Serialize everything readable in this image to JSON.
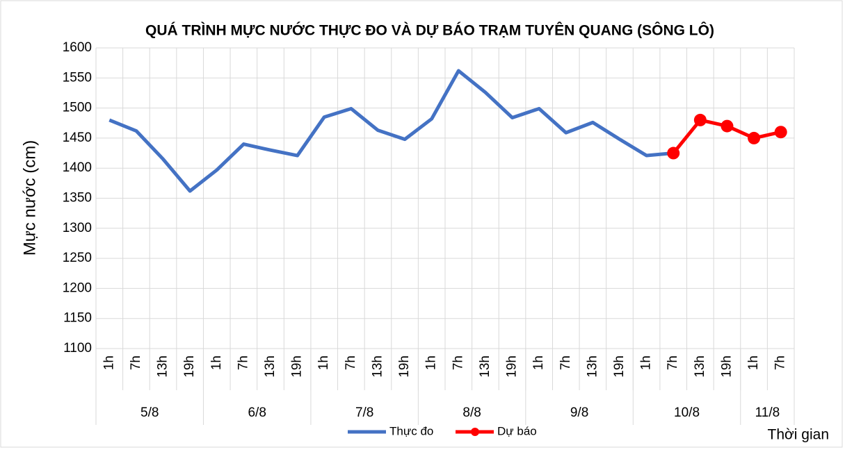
{
  "chart_data": {
    "type": "line",
    "title": "QUÁ TRÌNH MỰC NƯỚC THỰC ĐO VÀ DỰ BÁO TRẠM TUYÊN QUANG (SÔNG LÔ)",
    "y_label": "Mực nước (cm)",
    "x_label": "Thời gian",
    "category_groups": [
      {
        "name": "5/8",
        "categories": [
          "1h",
          "7h",
          "13h",
          "19h"
        ]
      },
      {
        "name": "6/8",
        "categories": [
          "1h",
          "7h",
          "13h",
          "19h"
        ]
      },
      {
        "name": "7/8",
        "categories": [
          "1h",
          "7h",
          "13h",
          "19h"
        ]
      },
      {
        "name": "8/8",
        "categories": [
          "1h",
          "7h",
          "13h",
          "19h"
        ]
      },
      {
        "name": "9/8",
        "categories": [
          "1h",
          "7h",
          "13h",
          "19h"
        ]
      },
      {
        "name": "10/8",
        "categories": [
          "1h",
          "7h",
          "13h",
          "19h"
        ]
      },
      {
        "name": "11/8",
        "categories": [
          "1h",
          "7h"
        ]
      }
    ],
    "series": [
      {
        "name": "Thực đo",
        "color": "#4472c4",
        "markers": false,
        "values": [
          1480,
          1462,
          1415,
          1362,
          1397,
          1440,
          1430,
          1421,
          1485,
          1499,
          1463,
          1448,
          1482,
          1562,
          1526,
          1484,
          1499,
          1459,
          1476,
          1448,
          1421,
          1425,
          null,
          null,
          null,
          null
        ]
      },
      {
        "name": "Dự báo",
        "color": "#ff0000",
        "markers": true,
        "values": [
          null,
          null,
          null,
          null,
          null,
          null,
          null,
          null,
          null,
          null,
          null,
          null,
          null,
          null,
          null,
          null,
          null,
          null,
          null,
          null,
          null,
          1425,
          1480,
          1470,
          1450,
          1460
        ]
      }
    ],
    "ylim": [
      1100,
      1600
    ],
    "yticks": [
      1100,
      1150,
      1200,
      1250,
      1300,
      1350,
      1400,
      1450,
      1500,
      1550,
      1600
    ],
    "grid": true,
    "legend": "bottom"
  }
}
